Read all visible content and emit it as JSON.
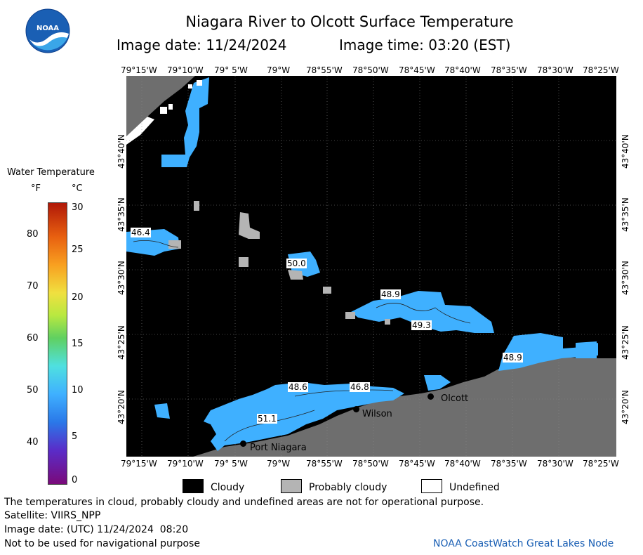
{
  "header": {
    "title": "Niagara River to Olcott Surface Temperature",
    "image_date_label": "Image date: 11/24/2024",
    "image_time_label": "Image time: 03:20 (EST)",
    "logo_text": "NOAA"
  },
  "map": {
    "lon_ticks": [
      "79°15'W",
      "79°10'W",
      "79° 5'W",
      "79°W",
      "78°55'W",
      "78°50'W",
      "78°45'W",
      "78°40'W",
      "78°35'W",
      "78°30'W",
      "78°25'W"
    ],
    "lat_ticks": [
      "43°40'N",
      "43°35'N",
      "43°30'N",
      "43°25'N",
      "43°20'N"
    ],
    "temperature_labels": [
      "46.4",
      "50.0",
      "48.9",
      "49.3",
      "48.9",
      "48.6",
      "46.8",
      "51.1"
    ],
    "places": [
      "Olcott",
      "Wilson",
      "Port Niagara"
    ]
  },
  "colorbar": {
    "title": "Water Temperature",
    "unit_f": "°F",
    "unit_c": "°C",
    "f_ticks": [
      "40",
      "50",
      "60",
      "70",
      "80"
    ],
    "c_ticks": [
      "0",
      "5",
      "10",
      "15",
      "20",
      "25",
      "30"
    ]
  },
  "legend": {
    "cloudy": "Cloudy",
    "probably_cloudy": "Probably cloudy",
    "undefined": "Undefined",
    "colors": {
      "cloudy": "#000000",
      "probably_cloudy": "#b4b4b4",
      "undefined": "#ffffff",
      "land": "#6e6e6e",
      "water": "#40b0ff"
    }
  },
  "footer": {
    "note": "The temperatures in cloud, probably cloudy and undefined areas are not for operational purpose.",
    "satellite": "Satellite: VIIRS_NPP",
    "utc_date": "Image date: (UTC) 11/24/2024  08:20",
    "nav": "Not to be used for navigational purpose",
    "credit": "NOAA CoastWatch Great Lakes Node"
  }
}
